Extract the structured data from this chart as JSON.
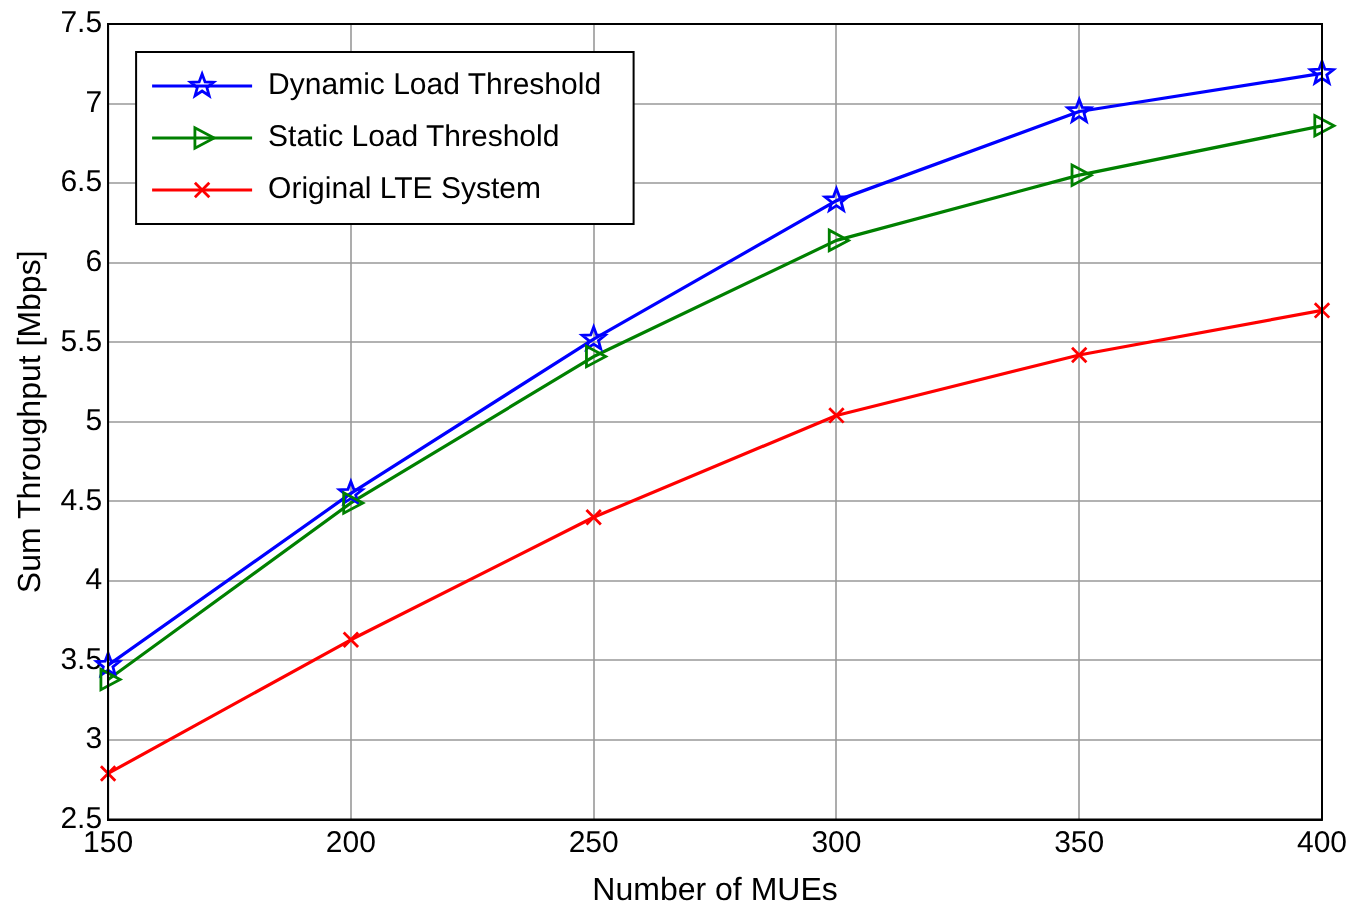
{
  "chart_data": {
    "type": "line",
    "xlabel": "Number of MUEs",
    "ylabel": "Sum Throughput [Mbps]",
    "x": [
      150,
      200,
      250,
      300,
      350,
      400
    ],
    "series": [
      {
        "name": "Dynamic Load Threshold",
        "color": "#0000ff",
        "marker": "star",
        "values": [
          3.47,
          4.55,
          5.52,
          6.39,
          6.95,
          7.19
        ]
      },
      {
        "name": "Static Load Threshold",
        "color": "#008000",
        "marker": "triangle",
        "values": [
          3.38,
          4.49,
          5.41,
          6.14,
          6.55,
          6.86
        ]
      },
      {
        "name": "Original LTE System",
        "color": "#ff0000",
        "marker": "cross",
        "values": [
          2.79,
          3.63,
          4.4,
          5.04,
          5.42,
          5.7
        ]
      }
    ],
    "xlim": [
      150,
      400
    ],
    "xticks": [
      150,
      200,
      250,
      300,
      350,
      400
    ],
    "ylim": [
      2.5,
      7.5
    ],
    "yticks": [
      2.5,
      3,
      3.5,
      4,
      4.5,
      5,
      5.5,
      6,
      6.5,
      7,
      7.5
    ],
    "grid": true,
    "legend": "top left",
    "line_style": "solid"
  }
}
